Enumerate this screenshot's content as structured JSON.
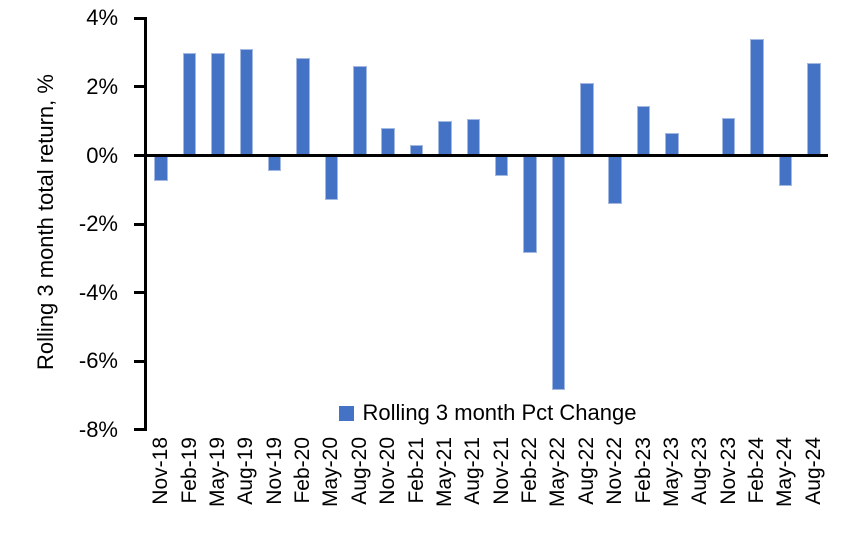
{
  "chart_data": {
    "type": "bar",
    "title": "",
    "xlabel": "",
    "ylabel": "Rolling 3 month total return, %",
    "categories": [
      "Nov-18",
      "Feb-19",
      "May-19",
      "Aug-19",
      "Nov-19",
      "Feb-20",
      "May-20",
      "Aug-20",
      "Nov-20",
      "Feb-21",
      "May-21",
      "Aug-21",
      "Nov-21",
      "Feb-22",
      "May-22",
      "Aug-22",
      "Nov-22",
      "Feb-23",
      "May-23",
      "Aug-23",
      "Nov-23",
      "Feb-24",
      "May-24",
      "Aug-24"
    ],
    "values": [
      -0.75,
      3.0,
      3.0,
      3.1,
      -0.45,
      2.85,
      -1.3,
      2.6,
      0.8,
      0.3,
      1.0,
      1.05,
      -0.6,
      -2.85,
      -6.85,
      2.1,
      -1.4,
      1.45,
      0.65,
      0.0,
      1.1,
      3.4,
      -0.9,
      2.7
    ],
    "ylim": [
      -8,
      4
    ],
    "yticks": [
      4,
      2,
      0,
      -2,
      -4,
      -6,
      -8
    ],
    "ytick_labels": [
      "4%",
      "2%",
      "0%",
      "-2%",
      "-4%",
      "-6%",
      "-8%"
    ],
    "grid": false,
    "legend_position": "bottom-center",
    "legend": [
      "Rolling 3 month Pct Change"
    ],
    "bar_color": "#4472C4",
    "axis_color": "#000000"
  }
}
